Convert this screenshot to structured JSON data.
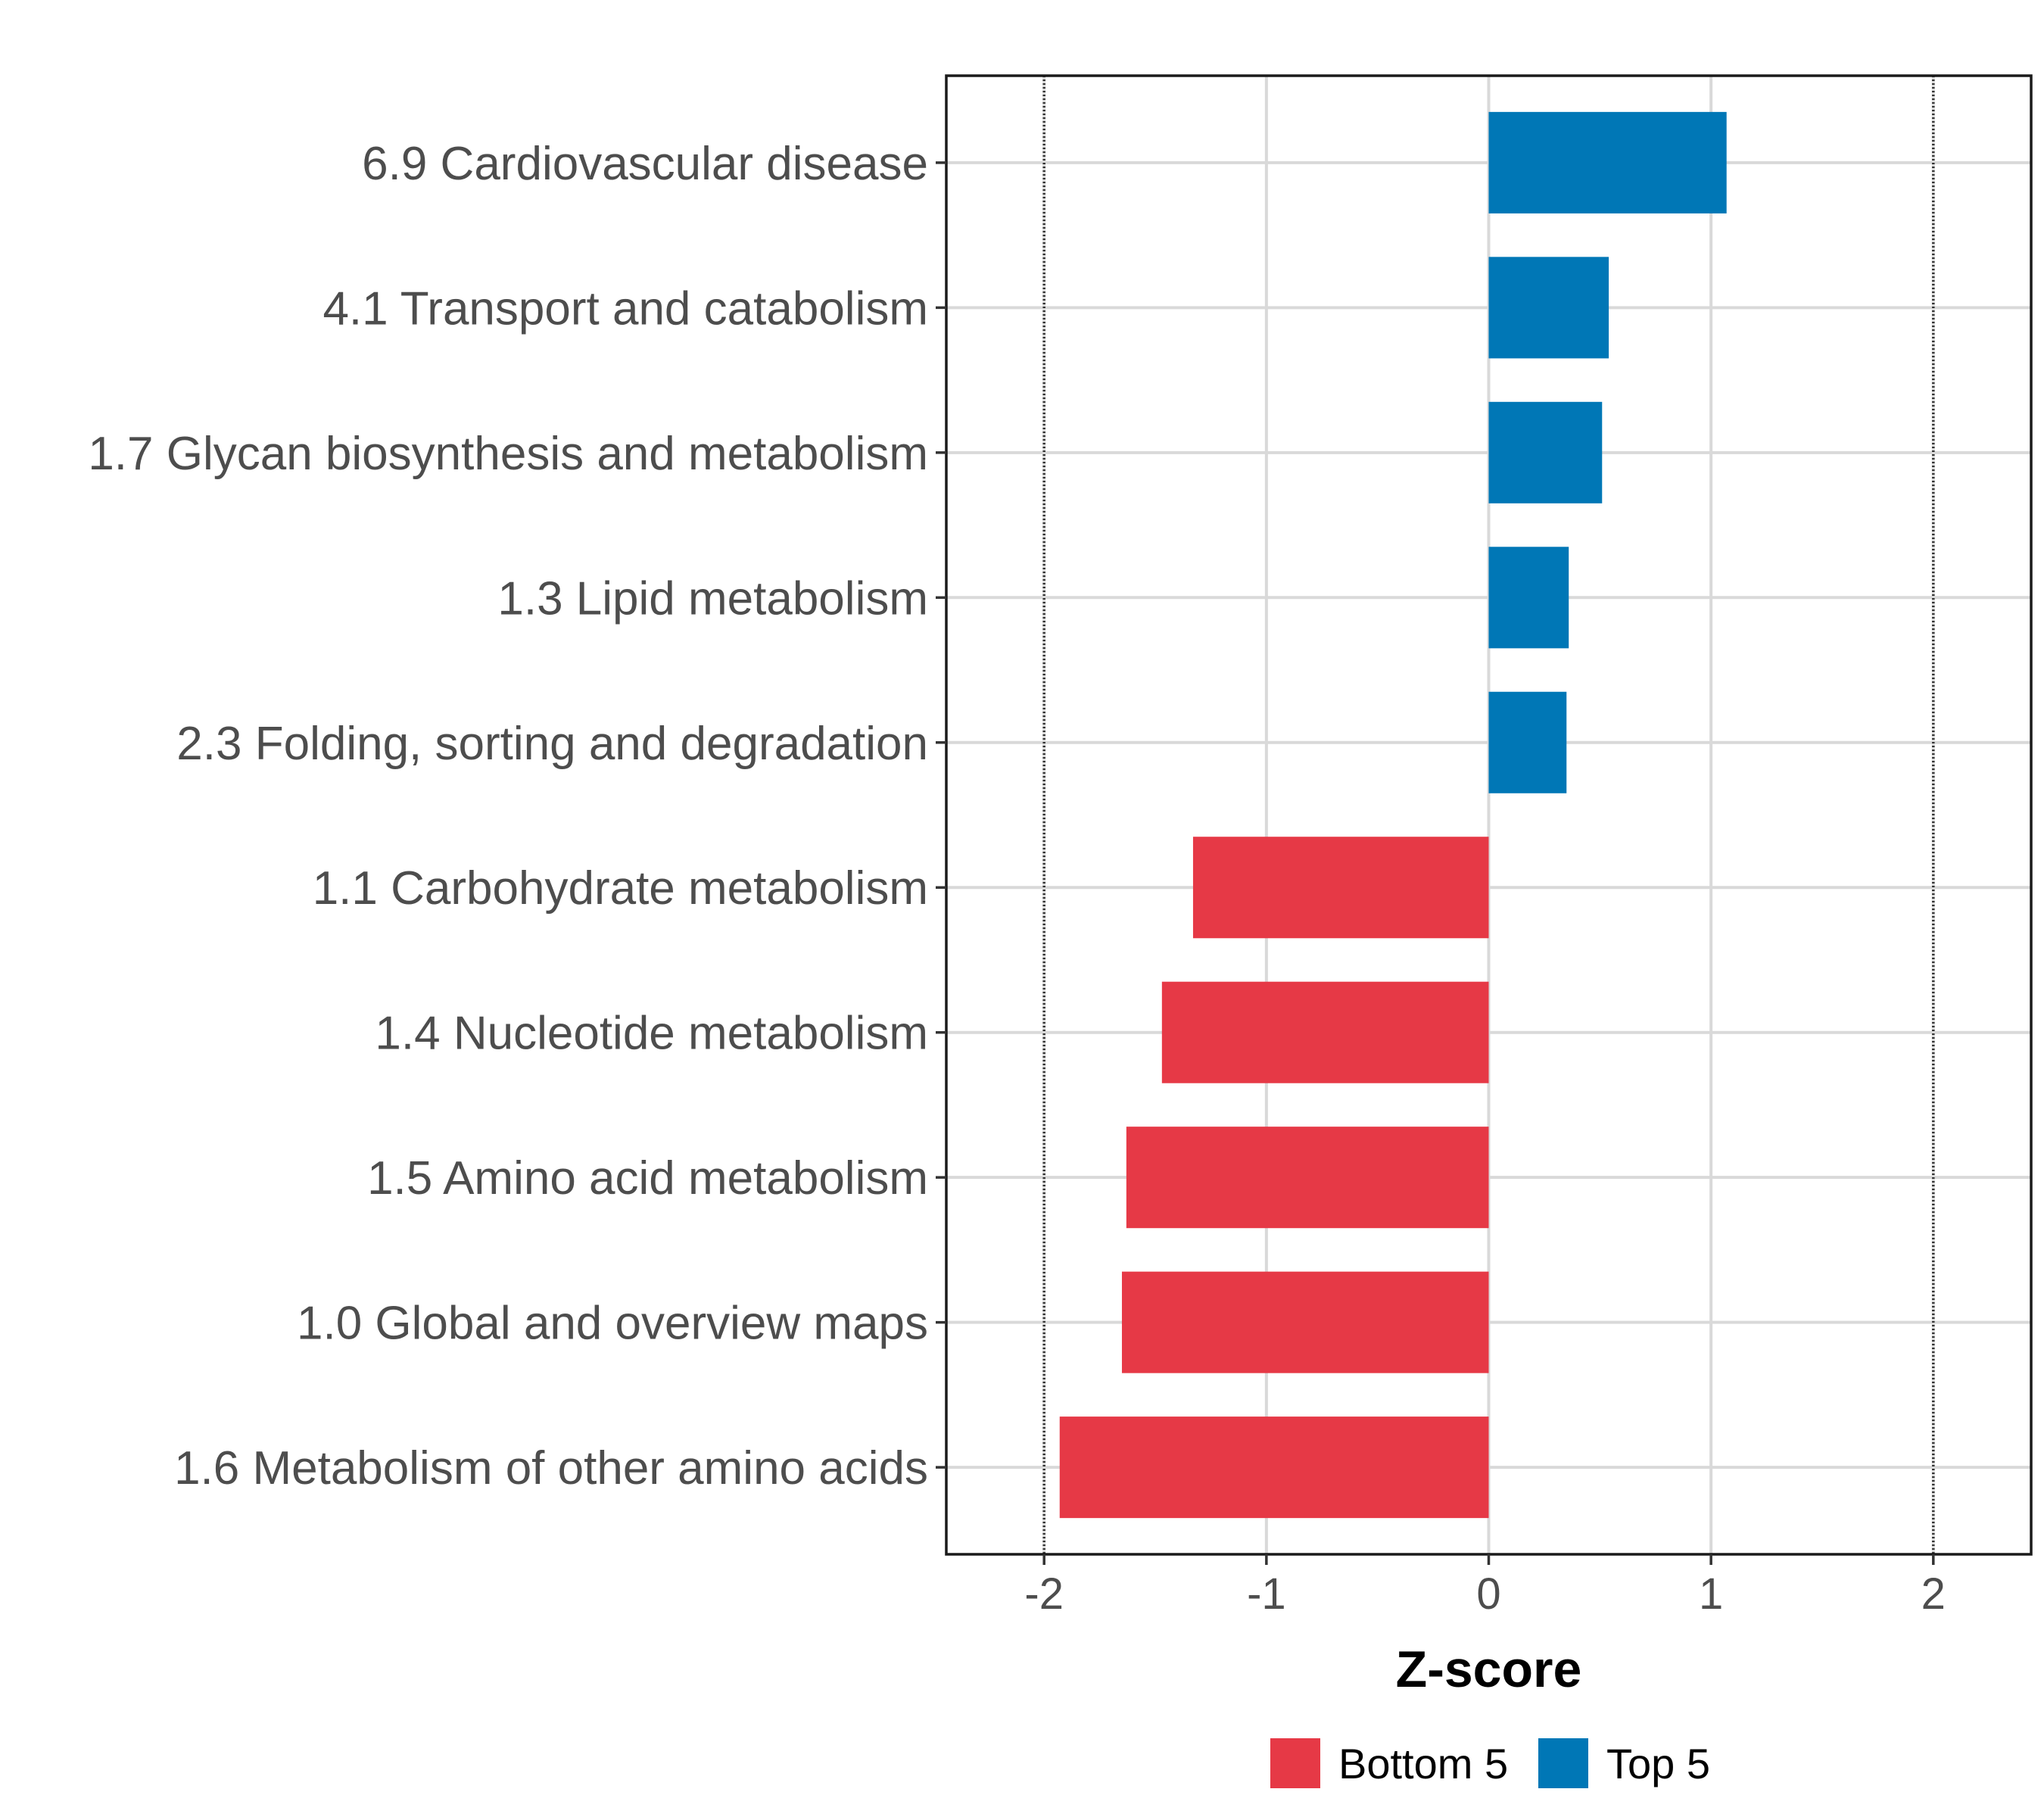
{
  "chart_data": {
    "type": "bar",
    "orientation": "horizontal",
    "categories": [
      "6.9 Cardiovascular disease",
      "4.1 Transport and catabolism",
      "1.7 Glycan biosynthesis and metabolism",
      "1.3 Lipid metabolism",
      "2.3 Folding, sorting and degradation",
      "1.1 Carbohydrate metabolism",
      "1.4 Nucleotide metabolism",
      "1.5 Amino acid metabolism",
      "1.0 Global and overview maps",
      "1.6 Metabolism of other amino acids"
    ],
    "values": [
      1.07,
      0.54,
      0.51,
      0.36,
      0.35,
      -1.33,
      -1.47,
      -1.63,
      -1.65,
      -1.93
    ],
    "groups": [
      "Top 5",
      "Top 5",
      "Top 5",
      "Top 5",
      "Top 5",
      "Bottom 5",
      "Bottom 5",
      "Bottom 5",
      "Bottom 5",
      "Bottom 5"
    ],
    "xlabel": "Z-score",
    "ylabel": "",
    "xlim": [
      -2.44,
      2.44
    ],
    "xticks": [
      -2,
      -1,
      0,
      1,
      2
    ],
    "xtick_labels": [
      "-2",
      "-1",
      "0",
      "1",
      "2"
    ],
    "reference_lines": [
      -2,
      2
    ],
    "grid": true,
    "legend": {
      "placement": "bottom",
      "entries": [
        {
          "label": "Bottom 5",
          "color": "#e63946"
        },
        {
          "label": "Top 5",
          "color": "#0077b6"
        }
      ]
    },
    "colors": {
      "Top 5": "#0077b6",
      "Bottom 5": "#e63946"
    }
  }
}
